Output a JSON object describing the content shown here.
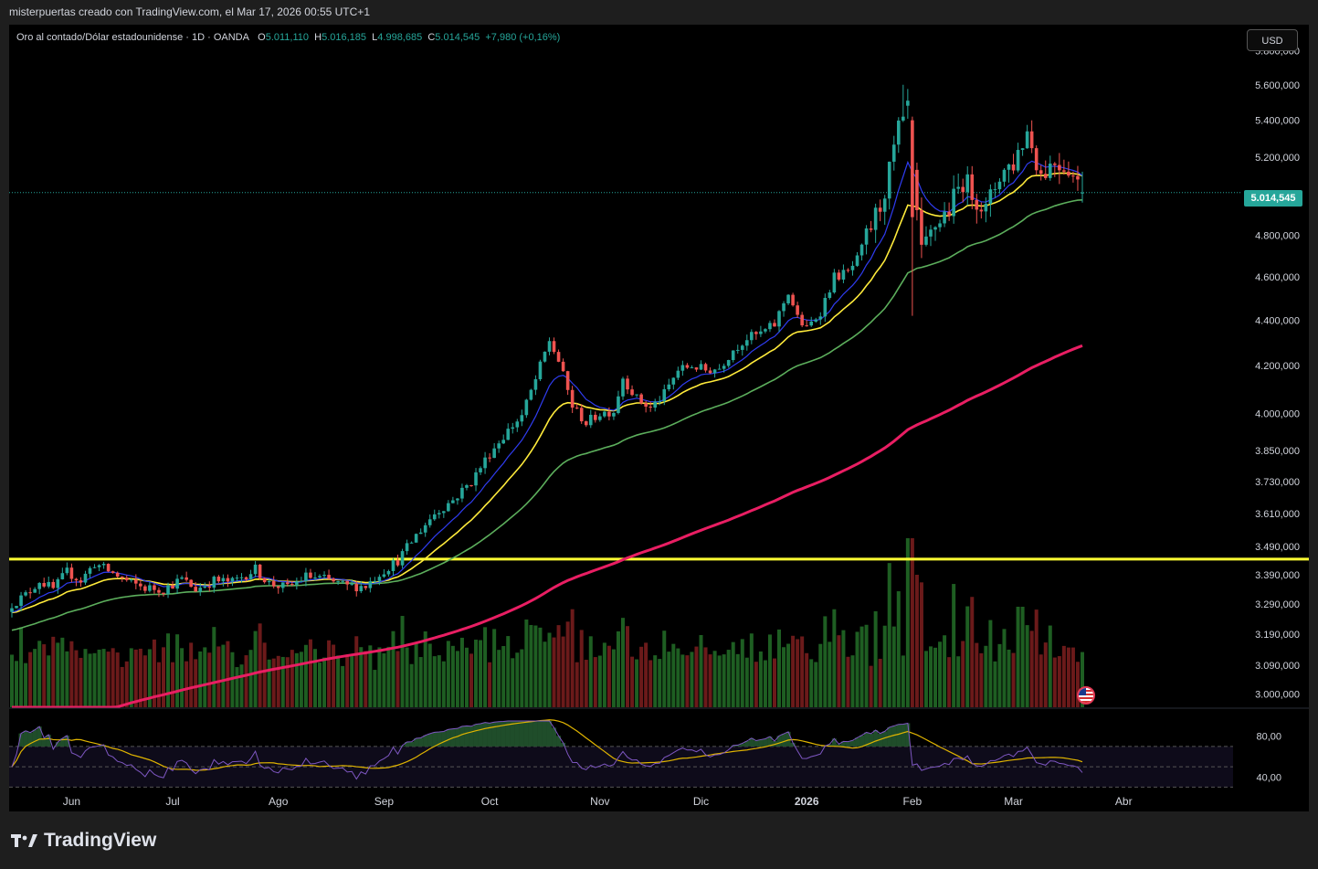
{
  "header": {
    "attribution": "misterpuertas creado con TradingView.com, el Mar 17, 2026 00:55 UTC+1"
  },
  "legend": {
    "symbol": "Oro al contado/Dólar estadounidense · 1D · OANDA",
    "o_label": "O",
    "o_value": "5.011,110",
    "h_label": "H",
    "h_value": "5.016,185",
    "l_label": "L",
    "l_value": "4.998,685",
    "c_label": "C",
    "c_value": "5.014,545",
    "change": "+7,980 (+0,16%)"
  },
  "currency_button": "USD",
  "last_price_label": "5.014,545",
  "branding": "TradingView",
  "colors": {
    "up": "#26a69a",
    "down": "#ef5350",
    "vol_up": "#1e5e22",
    "vol_down": "#6b1a1a",
    "ema_blue": "#2f3cf0",
    "ema_yellow": "#ffeb3b",
    "ema_green": "#5cae5c",
    "ema_pink": "#e91e63",
    "hline": "#ffff33",
    "rsi": "#7e57c2",
    "rsi_ma": "#e0b400",
    "background": "#000000"
  },
  "chart_data": {
    "type": "candlestick",
    "price_axis": {
      "scale": "log",
      "ticks": [
        5800,
        5600,
        5400,
        5200,
        4800,
        4600,
        4400,
        4200,
        4000,
        3850,
        3730,
        3610,
        3490,
        3390,
        3290,
        3190,
        3090,
        3000
      ],
      "tick_labels": [
        "5.800,000",
        "5.600,000",
        "5.400,000",
        "5.200,000",
        "4.800,000",
        "4.600,000",
        "4.400,000",
        "4.200,000",
        "4.000,000",
        "3.850,000",
        "3.730,000",
        "3.610,000",
        "3.490,000",
        "3.390,000",
        "3.290,000",
        "3.190,000",
        "3.090,000",
        "3.000,000"
      ],
      "range": [
        2960,
        5900
      ]
    },
    "time_axis": {
      "labels": [
        "Jun",
        "Jul",
        "Ago",
        "Sep",
        "Oct",
        "Nov",
        "Dic",
        "2026",
        "Feb",
        "Mar",
        "Abr"
      ],
      "label_bars": [
        13,
        35,
        58,
        81,
        104,
        128,
        150,
        173,
        196,
        218,
        242
      ]
    },
    "price_anchors": [
      [
        0,
        3290
      ],
      [
        3,
        3320
      ],
      [
        6,
        3370
      ],
      [
        9,
        3340
      ],
      [
        12,
        3400
      ],
      [
        15,
        3370
      ],
      [
        18,
        3430
      ],
      [
        22,
        3395
      ],
      [
        26,
        3360
      ],
      [
        29,
        3345
      ],
      [
        33,
        3340
      ],
      [
        37,
        3375
      ],
      [
        40,
        3340
      ],
      [
        44,
        3370
      ],
      [
        48,
        3365
      ],
      [
        53,
        3410
      ],
      [
        56,
        3360
      ],
      [
        60,
        3345
      ],
      [
        64,
        3385
      ],
      [
        68,
        3375
      ],
      [
        73,
        3350
      ],
      [
        77,
        3352
      ],
      [
        80,
        3395
      ],
      [
        84,
        3440
      ],
      [
        88,
        3530
      ],
      [
        92,
        3610
      ],
      [
        96,
        3660
      ],
      [
        100,
        3730
      ],
      [
        104,
        3840
      ],
      [
        108,
        3930
      ],
      [
        111,
        3990
      ],
      [
        114,
        4140
      ],
      [
        117,
        4310
      ],
      [
        119,
        4220
      ],
      [
        122,
        4030
      ],
      [
        125,
        3960
      ],
      [
        128,
        4000
      ],
      [
        131,
        4010
      ],
      [
        133,
        4150
      ],
      [
        136,
        4060
      ],
      [
        139,
        4020
      ],
      [
        142,
        4080
      ],
      [
        145,
        4180
      ],
      [
        148,
        4200
      ],
      [
        151,
        4180
      ],
      [
        154,
        4190
      ],
      [
        157,
        4270
      ],
      [
        160,
        4320
      ],
      [
        163,
        4340
      ],
      [
        166,
        4380
      ],
      [
        169,
        4530
      ],
      [
        171,
        4410
      ],
      [
        173,
        4360
      ],
      [
        176,
        4440
      ],
      [
        179,
        4600
      ],
      [
        182,
        4620
      ],
      [
        184,
        4680
      ],
      [
        187,
        4840
      ],
      [
        189,
        4950
      ],
      [
        191,
        5120
      ],
      [
        193,
        5350
      ],
      [
        195,
        5480
      ],
      [
        196,
        5080
      ],
      [
        198,
        4700
      ],
      [
        201,
        4850
      ],
      [
        204,
        4930
      ],
      [
        207,
        5080
      ],
      [
        210,
        4990
      ],
      [
        212,
        4920
      ],
      [
        215,
        5110
      ],
      [
        218,
        5170
      ],
      [
        221,
        5340
      ],
      [
        224,
        5110
      ],
      [
        227,
        5180
      ],
      [
        230,
        5150
      ],
      [
        233,
        5010
      ]
    ],
    "overlays": [
      {
        "indicator": "EMA",
        "color": "blue"
      },
      {
        "indicator": "EMA",
        "color": "yellow"
      },
      {
        "indicator": "EMA",
        "color": "green"
      },
      {
        "indicator": "EMA",
        "color": "pink"
      }
    ],
    "horizontal_line": 3445,
    "last_price": 5014.545,
    "volume": {
      "shown": true
    },
    "rsi": {
      "ticks": [
        80,
        40
      ],
      "tick_labels": [
        "80,00",
        "40,00"
      ],
      "range": [
        25,
        95
      ],
      "bands": [
        70,
        50,
        30
      ]
    },
    "grid": false,
    "legend_placement": "top-left"
  }
}
